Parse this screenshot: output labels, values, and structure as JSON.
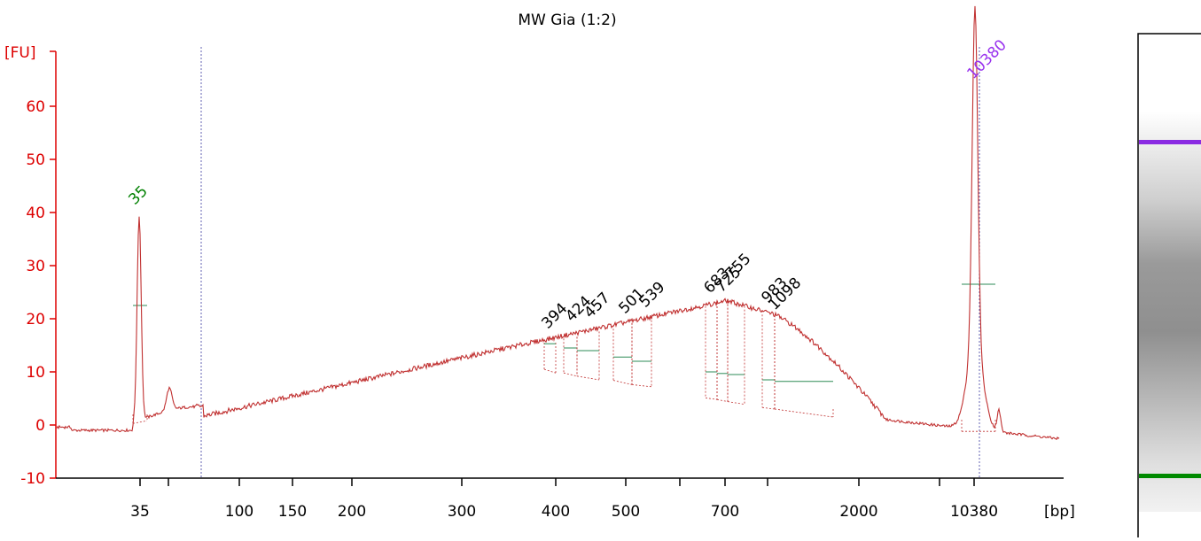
{
  "chart_data": {
    "type": "line",
    "title": "MW Gia (1:2)",
    "ylabel": "[FU]",
    "xlabel": "[bp]",
    "ylim": [
      -10,
      70
    ],
    "y_ticks": [
      -10,
      0,
      10,
      20,
      30,
      40,
      50,
      60
    ],
    "x_tick_labels": [
      "35",
      "100",
      "150",
      "200",
      "300",
      "400",
      "500",
      "700",
      "2000",
      "10380"
    ],
    "marker_labels": [
      {
        "text": "35",
        "kind": "lower"
      },
      {
        "text": "10380",
        "kind": "upper"
      }
    ],
    "peak_labels": [
      "394",
      "424",
      "457",
      "501",
      "539",
      "683",
      "725",
      "755",
      "983",
      "1098"
    ],
    "series": [
      {
        "x": [
          "35",
          "100",
          "150",
          "200",
          "300",
          "394",
          "424",
          "457",
          "501",
          "539",
          "683",
          "725",
          "755",
          "983",
          "1098",
          "2000",
          "10380"
        ],
        "values": [
          39,
          2.6,
          4.5,
          7.5,
          12,
          15.5,
          16.5,
          17.5,
          19,
          20.5,
          23,
          23.5,
          23,
          21,
          19,
          1.5,
          64
        ]
      }
    ],
    "grid": false,
    "legend": "none",
    "colors": {
      "axis": "#dd0000",
      "trace": "#c03030",
      "lower_marker": "#008000",
      "upper_marker": "#9933ee",
      "peak_label": "#000000",
      "band_purple": "#8a2be2",
      "band_green": "#008a00"
    }
  },
  "gel_lane": {
    "bands": [
      "upper-marker",
      "smear",
      "lower-marker"
    ]
  }
}
